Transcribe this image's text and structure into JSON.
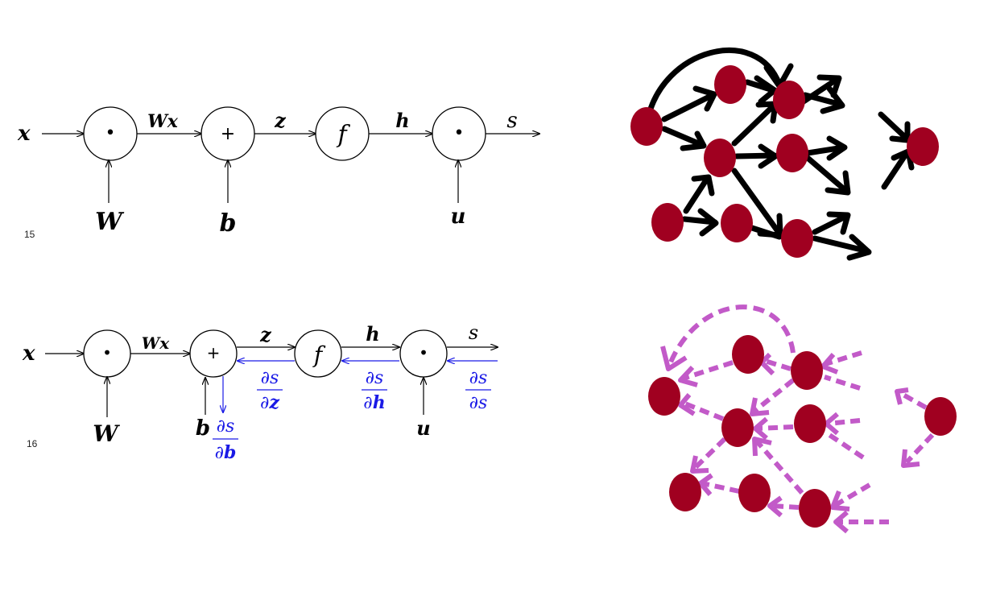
{
  "slide_numbers": {
    "top": "15",
    "bottom": "16"
  },
  "forward_graph": {
    "input": "x",
    "labels": {
      "wx_left": "W",
      "wx_right": "x",
      "z": "z",
      "h": "h",
      "s": "s"
    },
    "inputs_below": {
      "W": "W",
      "b": "b",
      "u": "u"
    },
    "nodes": {
      "mult1": "•",
      "add": "+",
      "func": "f",
      "mult2": "•"
    }
  },
  "backward_graph": {
    "input": "x",
    "labels": {
      "wx_left": "W",
      "wx_right": "x",
      "z": "z",
      "h": "h",
      "s": "s"
    },
    "inputs_below": {
      "W": "W",
      "b": "b",
      "u": "u"
    },
    "nodes": {
      "mult1": "•",
      "add": "+",
      "func": "f",
      "mult2": "•"
    },
    "gradients": {
      "numerator": "∂s",
      "ds_ds_denominator": "∂s",
      "partial": "∂",
      "dz_var": "z",
      "dh_var": "h",
      "db_var": "b"
    }
  },
  "colors": {
    "gradient_blue": "#1a1ae6",
    "node_red": "#a00020",
    "forward_arrow": "#000000",
    "backward_arrow": "#c25ac8"
  }
}
